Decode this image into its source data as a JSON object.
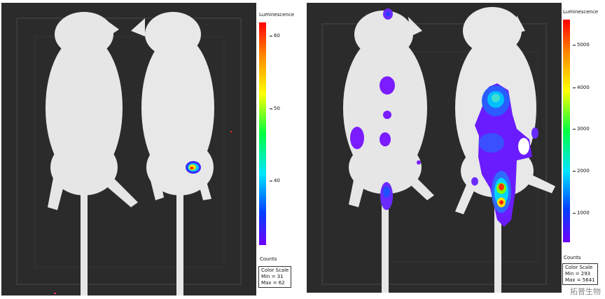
{
  "left_panel": {
    "scale_title": "Luminescence",
    "ticks": [
      "60",
      "50",
      "40"
    ],
    "counts_label": "Counts",
    "color_scale": {
      "title": "Color Scale",
      "min": "Min = 31",
      "max": "Max = 62"
    }
  },
  "right_panel": {
    "scale_title": "Luminescence",
    "ticks": [
      "5000",
      "4000",
      "3000",
      "2000",
      "1000"
    ],
    "counts_label": "Counts",
    "color_scale": {
      "title": "Color Scale",
      "min": "Min = 293",
      "max": "Max = 5641"
    }
  },
  "watermark": "拓普生物",
  "colors": {
    "background": "#2b2b2b",
    "mouse_fur": "#e8e8e8"
  }
}
